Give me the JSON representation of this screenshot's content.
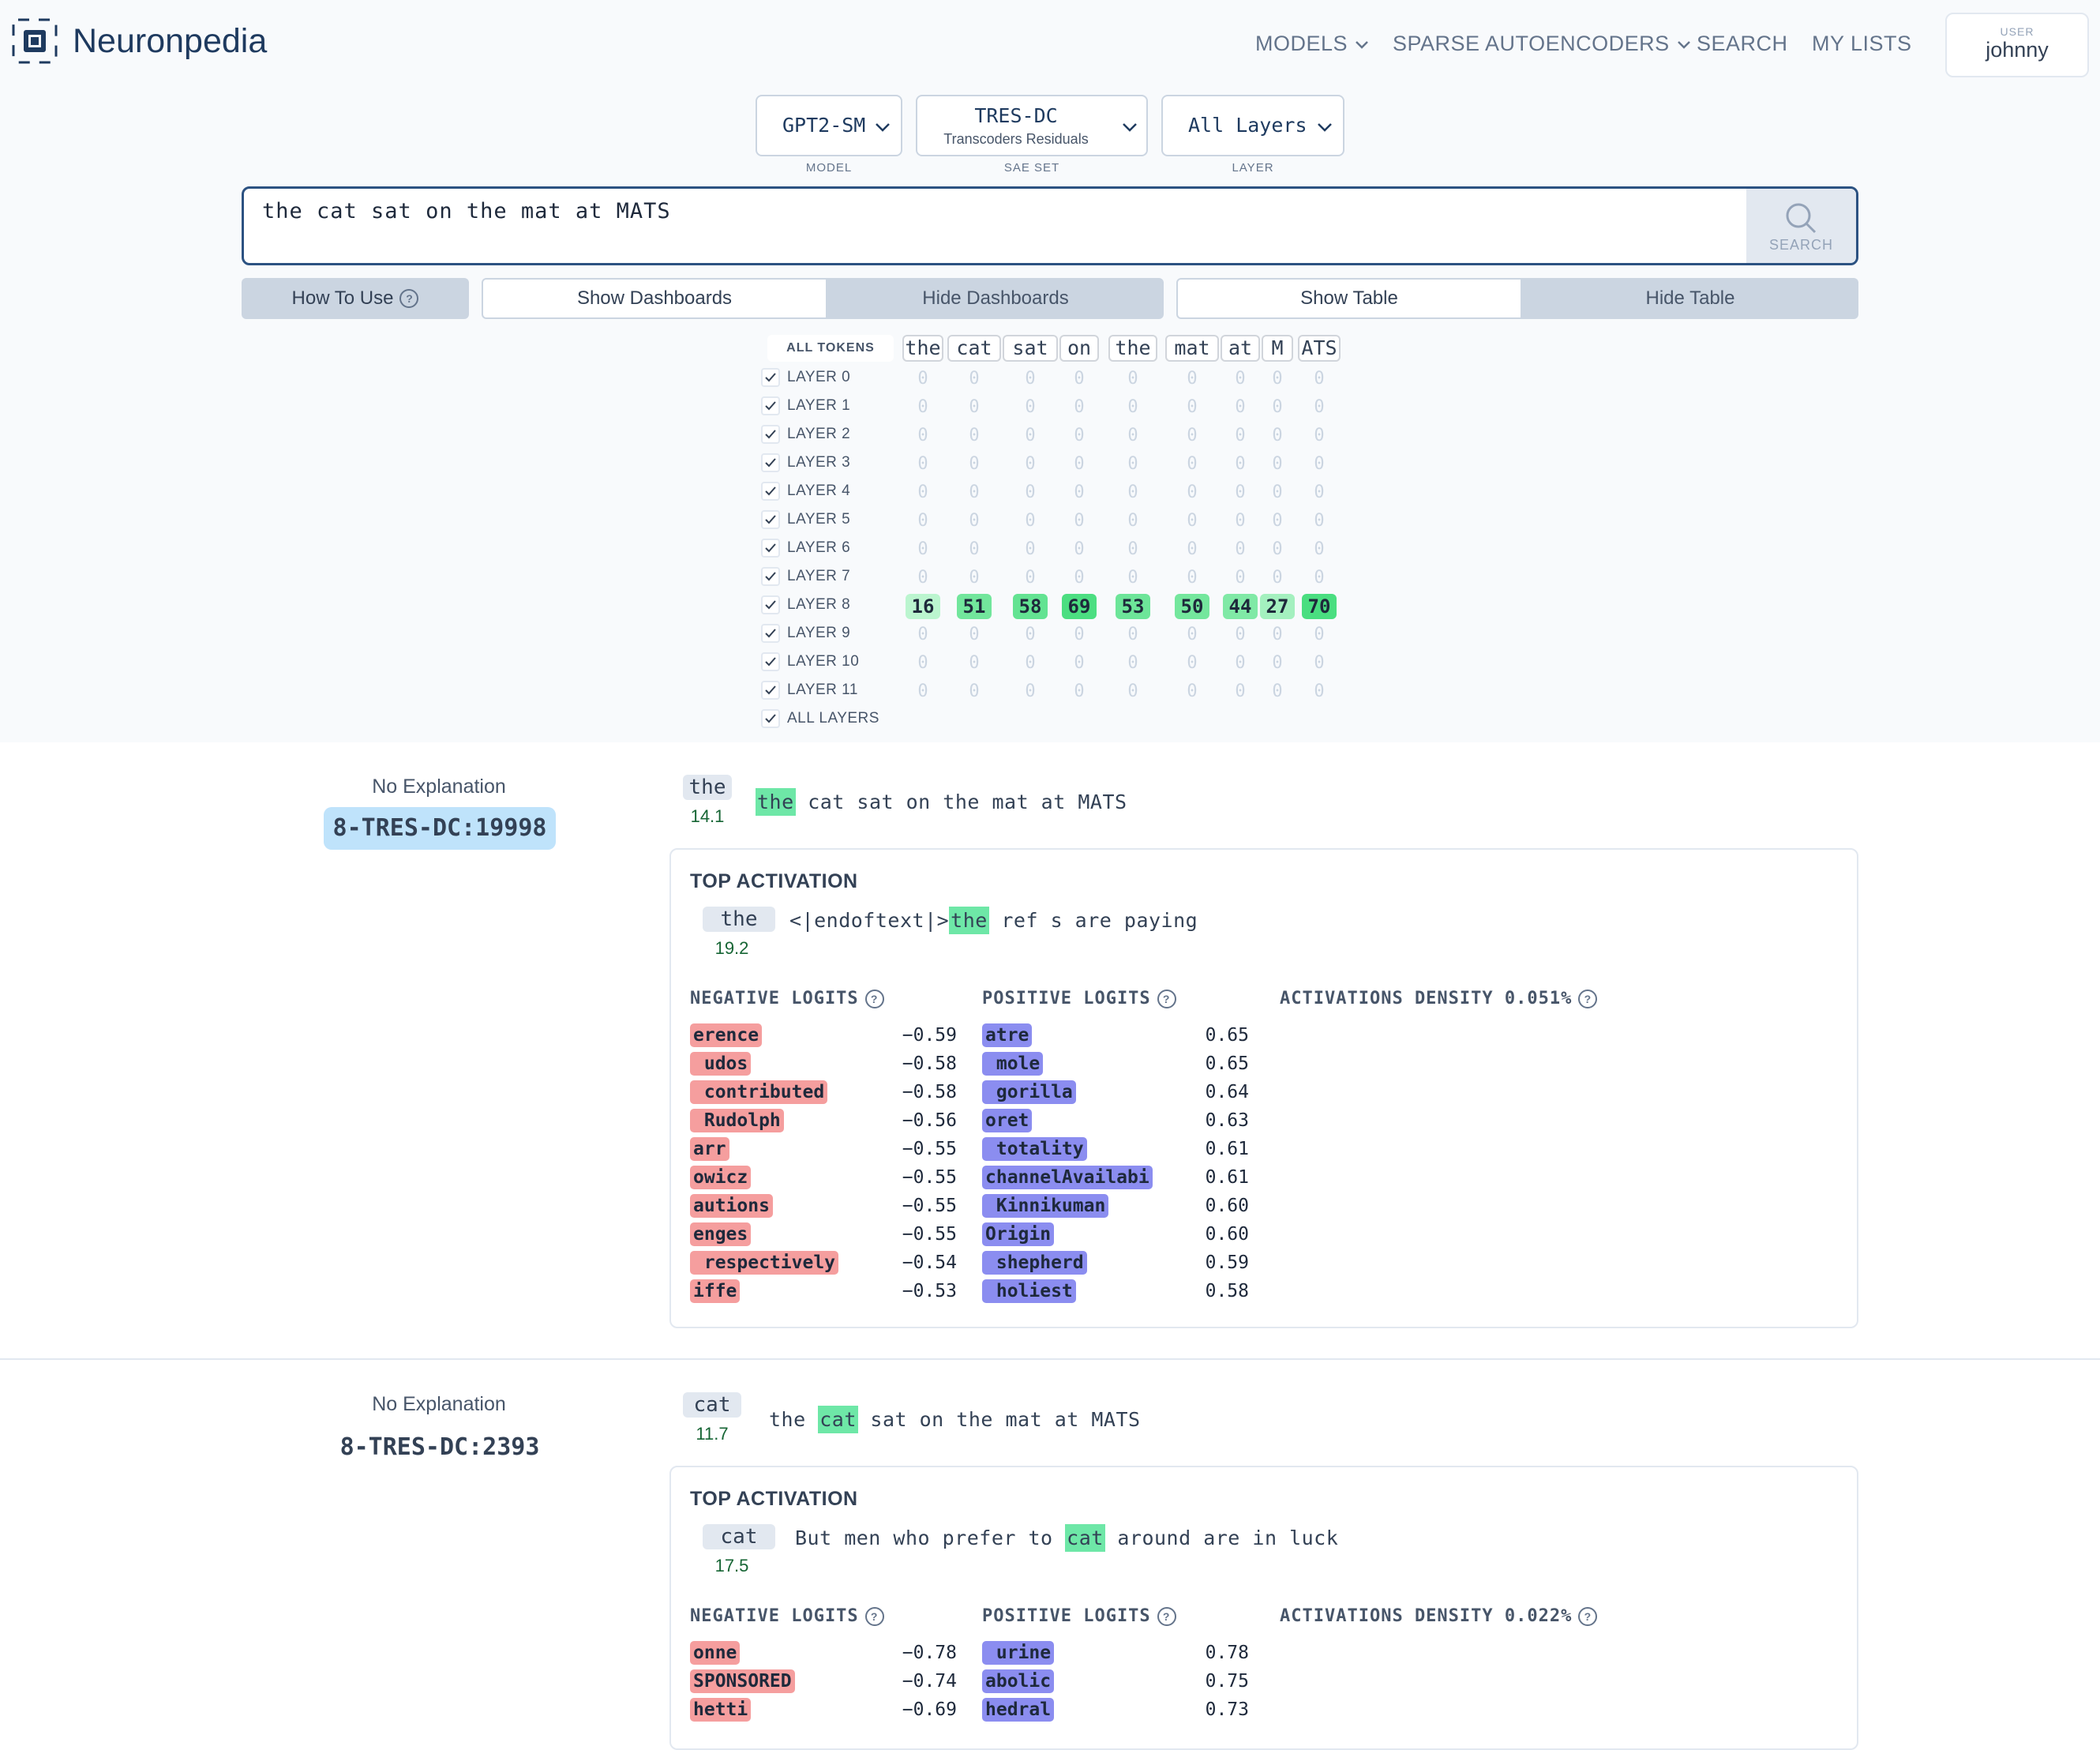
{
  "brand": "Neuronpedia",
  "nav": {
    "models": "MODELS",
    "saes": "SPARSE AUTOENCODERS",
    "search": "SEARCH",
    "lists": "MY LISTS"
  },
  "user": {
    "label": "USER",
    "name": "johnny"
  },
  "selectors": {
    "model": {
      "value": "GPT2-SM",
      "caption": "MODEL"
    },
    "saeset": {
      "value": "TRES-DC",
      "sub": "Transcoders Residuals",
      "caption": "SAE SET"
    },
    "layer": {
      "value": "All Layers",
      "caption": "LAYER"
    }
  },
  "search": {
    "query": "the cat sat on the mat at MATS",
    "button": "SEARCH"
  },
  "toolbar": {
    "how_to_use": "How To Use",
    "show_dashboards": "Show Dashboards",
    "hide_dashboards": "Hide Dashboards",
    "show_table": "Show Table",
    "hide_table": "Hide Table"
  },
  "grid": {
    "all_tokens": "ALL TOKENS",
    "tokens": [
      "the",
      "cat",
      "sat",
      "on",
      "the",
      "mat",
      "at",
      "M",
      "ATS"
    ],
    "layers": [
      "LAYER 0",
      "LAYER 1",
      "LAYER 2",
      "LAYER 3",
      "LAYER 4",
      "LAYER 5",
      "LAYER 6",
      "LAYER 7",
      "LAYER 8",
      "LAYER 9",
      "LAYER 10",
      "LAYER 11"
    ],
    "all_layers": "ALL LAYERS",
    "zero": "0",
    "active_layer_index": 8,
    "layer8_values": [
      "16",
      "51",
      "58",
      "69",
      "53",
      "50",
      "44",
      "27",
      "70"
    ]
  },
  "features": [
    {
      "explanation": "No Explanation",
      "id": "8-TRES-DC:19998",
      "token": "the",
      "activation": "14.1",
      "sentence": {
        "before": "",
        "hl": "the",
        "after": " cat sat on the mat at MATS"
      },
      "top_activation": {
        "title": "TOP ACTIVATION",
        "token": "the",
        "value": "19.2",
        "before": "<|endoftext|>",
        "hl": "the",
        "after": " ref s are paying"
      },
      "neg_header": "NEGATIVE LOGITS",
      "pos_header": "POSITIVE LOGITS",
      "density_label": "ACTIVATIONS DENSITY",
      "density_value": "0.051%",
      "negative": [
        {
          "t": "erence",
          "v": "−0.59"
        },
        {
          "t": " udos",
          "v": "−0.58"
        },
        {
          "t": " contributed",
          "v": "−0.58"
        },
        {
          "t": " Rudolph",
          "v": "−0.56"
        },
        {
          "t": "arr",
          "v": "−0.55"
        },
        {
          "t": "owicz",
          "v": "−0.55"
        },
        {
          "t": "autions",
          "v": "−0.55"
        },
        {
          "t": "enges",
          "v": "−0.55"
        },
        {
          "t": " respectively",
          "v": "−0.54"
        },
        {
          "t": "iffe",
          "v": "−0.53"
        }
      ],
      "positive": [
        {
          "t": "atre",
          "v": "0.65"
        },
        {
          "t": " mole",
          "v": "0.65"
        },
        {
          "t": " gorilla",
          "v": "0.64"
        },
        {
          "t": "oret",
          "v": "0.63"
        },
        {
          "t": " totality",
          "v": "0.61"
        },
        {
          "t": "channelAvailabi",
          "v": "0.61"
        },
        {
          "t": " Kinnikuman",
          "v": "0.60"
        },
        {
          "t": "Origin",
          "v": "0.60"
        },
        {
          "t": " shepherd",
          "v": "0.59"
        },
        {
          "t": " holiest",
          "v": "0.58"
        }
      ]
    },
    {
      "explanation": "No Explanation",
      "id": "8-TRES-DC:2393",
      "token": "cat",
      "activation": "11.7",
      "sentence": {
        "before": "the ",
        "hl": "cat",
        "after": " sat on the mat at MATS"
      },
      "top_activation": {
        "title": "TOP ACTIVATION",
        "token": "cat",
        "value": "17.5",
        "before": "But men who prefer to ",
        "hl": "cat",
        "after": " around are in luck"
      },
      "neg_header": "NEGATIVE LOGITS",
      "pos_header": "POSITIVE LOGITS",
      "density_label": "ACTIVATIONS DENSITY",
      "density_value": "0.022%",
      "negative": [
        {
          "t": "onne",
          "v": "−0.78"
        },
        {
          "t": "SPONSORED",
          "v": "−0.74"
        },
        {
          "t": "hetti",
          "v": "−0.69"
        }
      ],
      "positive": [
        {
          "t": " urine",
          "v": "0.78"
        },
        {
          "t": "abolic",
          "v": "0.75"
        },
        {
          "t": "hedral",
          "v": "0.73"
        }
      ]
    }
  ],
  "colors": {
    "accent": "#2c5282",
    "highlight": "#6ee7a7",
    "neg_logit": "#f59e9e",
    "pos_logit": "#8b8df0",
    "id_badge": "#bfe3fb"
  }
}
